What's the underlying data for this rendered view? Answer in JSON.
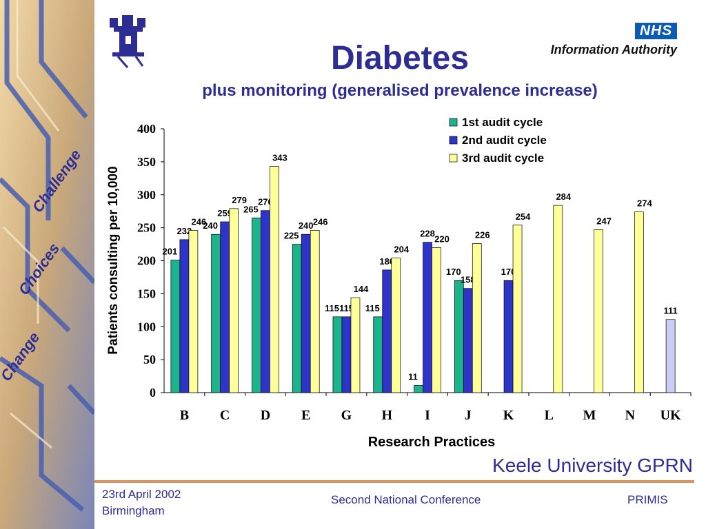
{
  "header": {
    "title": "Diabetes",
    "subtitle": "plus monitoring (generalised prevalence increase)",
    "nhs_logo": "NHS",
    "nhs_org": "Information Authority"
  },
  "side_panel": {
    "words": [
      "Challenge",
      "Choices",
      "Change"
    ]
  },
  "footer": {
    "org": "Keele University GPRN",
    "date": "23rd April 2002",
    "place": "Birmingham",
    "event": "Second National Conference",
    "brand": "PRIMIS"
  },
  "colors": {
    "title": "#2d2d94",
    "series1": "#1db38c",
    "series2": "#2f34c8",
    "series3": "#ffff99",
    "uk_bar": "#ccccf5",
    "accent_line": "#d9955e"
  },
  "chart_data": {
    "type": "bar",
    "xlabel": "Research Practices",
    "ylabel": "Patients consulting per 10,000",
    "ylim": [
      0,
      400
    ],
    "yticks": [
      0,
      50,
      100,
      150,
      200,
      250,
      300,
      350,
      400
    ],
    "categories": [
      "B",
      "C",
      "D",
      "E",
      "G",
      "H",
      "I",
      "J",
      "K",
      "L",
      "M",
      "N",
      "UK"
    ],
    "legend_position": "top-right",
    "series": [
      {
        "name": "1st audit cycle",
        "values": [
          201,
          240,
          265,
          225,
          115,
          115,
          11,
          170,
          null,
          null,
          null,
          null,
          null
        ]
      },
      {
        "name": "2nd audit cycle",
        "values": [
          232,
          259,
          276,
          240,
          115,
          186,
          228,
          158,
          170,
          null,
          null,
          null,
          null
        ]
      },
      {
        "name": "3rd audit cycle",
        "values": [
          246,
          279,
          343,
          246,
          144,
          204,
          220,
          226,
          254,
          284,
          247,
          274,
          null
        ]
      }
    ],
    "uk_value": 111
  }
}
